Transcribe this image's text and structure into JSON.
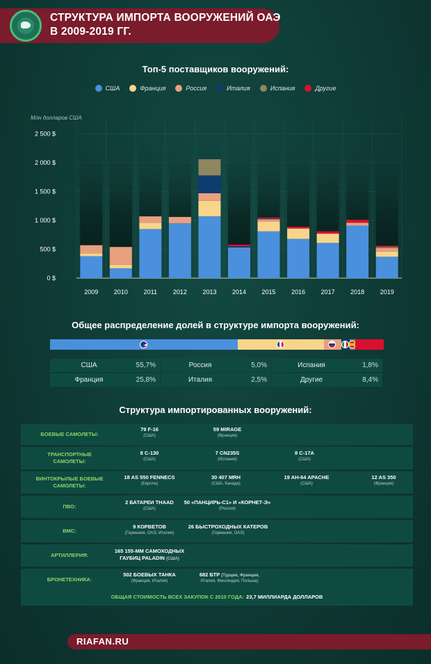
{
  "header": {
    "title_line1": "СТРУКТУРА ИМПОРТА ВООРУЖЕНИЙ ОАЭ",
    "title_line2": "В 2009-2019 ГГ."
  },
  "chart_section": {
    "subtitle": "Топ-5 поставщиков вооружений:",
    "unit_label": "Млн долларов США"
  },
  "colors": {
    "usa": "#4a90dc",
    "france": "#f7d58a",
    "russia": "#e8a07f",
    "italy": "#0d3d6e",
    "spain": "#8e8660",
    "other": "#d8102f"
  },
  "chart_data": {
    "type": "bar",
    "stacked": true,
    "categories": [
      "2009",
      "2010",
      "2011",
      "2012",
      "2013",
      "2014",
      "2015",
      "2016",
      "2017",
      "2018",
      "2019"
    ],
    "series": [
      {
        "name": "США",
        "color": "#4a90dc",
        "values": [
          380,
          170,
          850,
          950,
          1070,
          530,
          810,
          680,
          610,
          910,
          370
        ]
      },
      {
        "name": "Франция",
        "color": "#f7d58a",
        "values": [
          50,
          60,
          110,
          0,
          270,
          0,
          170,
          180,
          160,
          0,
          90
        ]
      },
      {
        "name": "Россия",
        "color": "#e8a07f",
        "values": [
          140,
          310,
          110,
          110,
          130,
          0,
          40,
          0,
          0,
          50,
          60
        ]
      },
      {
        "name": "Италия",
        "color": "#0d3d6e",
        "values": [
          0,
          0,
          0,
          0,
          310,
          20,
          10,
          0,
          0,
          0,
          0
        ]
      },
      {
        "name": "Испания",
        "color": "#8e8660",
        "values": [
          0,
          0,
          0,
          0,
          280,
          0,
          0,
          0,
          0,
          0,
          20
        ]
      },
      {
        "name": "Другие",
        "color": "#d8102f",
        "values": [
          0,
          0,
          0,
          0,
          0,
          30,
          20,
          30,
          40,
          50,
          20
        ]
      }
    ],
    "yticks": [
      0,
      500,
      1000,
      1500,
      2000,
      2500
    ],
    "ytick_labels": [
      "0 $",
      "500 $",
      "1 000 $",
      "1 500 $",
      "2 000 $",
      "2 500 $"
    ],
    "ylim": [
      0,
      2800
    ],
    "grid": true,
    "legend": "top-center"
  },
  "legend": [
    {
      "label": "США",
      "color": "#4a90dc"
    },
    {
      "label": "Франция",
      "color": "#f7d58a"
    },
    {
      "label": "Россия",
      "color": "#e8a07f"
    },
    {
      "label": "Италия",
      "color": "#0d3d6e"
    },
    {
      "label": "Испания",
      "color": "#8e8660"
    },
    {
      "label": "Другие",
      "color": "#d8102f"
    }
  ],
  "shares": {
    "subtitle": "Общее распределение долей в структуре импорта вооружений:",
    "rows": [
      [
        {
          "name": "США",
          "value": "55,7%"
        },
        {
          "name": "Россия",
          "value": "5,0%"
        },
        {
          "name": "Испания",
          "value": "1,8%"
        }
      ],
      [
        {
          "name": "Франция",
          "value": "25,8%"
        },
        {
          "name": "Италия",
          "value": "2,5%"
        },
        {
          "name": "Другие",
          "value": "8,4%"
        }
      ]
    ],
    "bar": [
      {
        "country": "usa",
        "percent": 55.7,
        "color": "#4a90dc"
      },
      {
        "country": "france",
        "percent": 25.8,
        "color": "#f7d58a"
      },
      {
        "country": "russia",
        "percent": 5.0,
        "color": "#e8a07f"
      },
      {
        "country": "italy",
        "percent": 2.5,
        "color": "#0d3d6e"
      },
      {
        "country": "spain",
        "percent": 1.8,
        "color": "#8e8660"
      },
      {
        "country": "other",
        "percent": 8.4,
        "color": "#d8102f"
      }
    ]
  },
  "imports": {
    "subtitle": "Структура импортированных вооружений:",
    "rows": [
      {
        "label": "БОЕВЫЕ САМОЛЕТЫ:",
        "items": [
          {
            "main": "79 F-16",
            "sub": "(США)"
          },
          {
            "main": "59 MIRAGE",
            "sub": "(Франция)"
          }
        ]
      },
      {
        "label": "ТРАНСПОРТНЫЕ САМОЛЕТЫ:",
        "items": [
          {
            "main": "8 C-130",
            "sub": "(США)"
          },
          {
            "main": "7 CN235S",
            "sub": "(Испания)"
          },
          {
            "main": "8 C-17A",
            "sub": "(США)"
          }
        ]
      },
      {
        "label": "ВИНТОКРЫЛЫЕ БОЕВЫЕ САМОЛЕТЫ:",
        "items": [
          {
            "main": "18 AS 550 FENNECS",
            "sub": "(Европа)"
          },
          {
            "main": "30 407 MRH",
            "sub": "(США, Канада)"
          },
          {
            "main": "19 AH-64 APACHE",
            "sub": "(США)"
          },
          {
            "main": "12 AS 350",
            "sub": "(Франция)"
          }
        ]
      },
      {
        "label": "ПВО:",
        "items": [
          {
            "main": "2 БАТАРЕИ THAAD",
            "sub": "(США)"
          },
          {
            "main": "50 «ПАНЦИРЬ-С1» И «КОРНЕТ-Э»",
            "sub": "(Россия)"
          }
        ]
      },
      {
        "label": "ВМС:",
        "items": [
          {
            "main": "9 КОРВЕТОВ",
            "sub": "(Германия, ОАЭ, Италия)"
          },
          {
            "main": "26 БЫСТРОХОДНЫХ КАТЕРОВ",
            "sub": "(Германия, ОАЭ)"
          }
        ]
      },
      {
        "label": "АРТИЛЛЕРИЯ:",
        "items": [
          {
            "main": "165 155-ММ САМОХОДНЫХ",
            "main2": "ГАУБИЦ PALADIN",
            "sub": "(США)"
          }
        ]
      },
      {
        "label": "БРОНЕТЕХНИКА:",
        "items": [
          {
            "main": "502 БОЕВЫХ ТАНКА",
            "sub": "(Франция, Италия)"
          },
          {
            "main": "682 БТР",
            "sub": "(Турция, Франция,",
            "sub2": "Италия, Финляндия, Польша)"
          }
        ]
      }
    ],
    "total_label": "ОБЩАЯ СТОИМОСТЬ ВСЕХ ЗАКУПОК С 2010 ГОДА:",
    "total_value": "23,7 МИЛЛИАРДА ДОЛЛАРОВ"
  },
  "footer": {
    "site": "RIAFAN.RU"
  }
}
